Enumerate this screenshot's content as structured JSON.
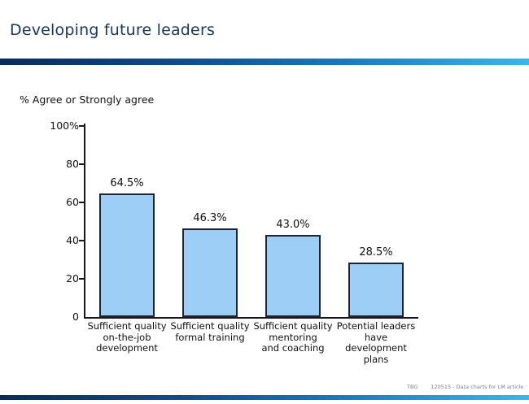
{
  "slide": {
    "title": "Developing future leaders",
    "footer": {
      "org": "TBG",
      "note": "120515 - Data charts for LM article"
    }
  },
  "colors": {
    "title_text": "#17375E",
    "accent_gradient_start": "#0a2a5c",
    "accent_gradient_end": "#3cb6ea",
    "bar_fill": "#9CCEF6",
    "bar_border": "#20242e",
    "axis": "#17171c"
  },
  "chart_data": {
    "type": "bar",
    "title": "% Agree or Strongly agree",
    "categories": [
      "Sufficient quality\non-the-job\ndevelopment",
      "Sufficient quality\nformal training",
      "Sufficient quality\nmentoring\nand coaching",
      "Potential leaders\nhave development\nplans"
    ],
    "values": [
      64.5,
      46.3,
      43.0,
      28.5
    ],
    "value_labels": [
      "64.5%",
      "46.3%",
      "43.0%",
      "28.5%"
    ],
    "xlabel": "",
    "ylabel": "",
    "ylim": [
      0,
      100
    ],
    "yticks": [
      {
        "value": 100,
        "label": "100%"
      },
      {
        "value": 80,
        "label": "80"
      },
      {
        "value": 60,
        "label": "60"
      },
      {
        "value": 40,
        "label": "40"
      },
      {
        "value": 20,
        "label": "20"
      },
      {
        "value": 0,
        "label": "0"
      }
    ],
    "grid": false,
    "legend": null
  }
}
